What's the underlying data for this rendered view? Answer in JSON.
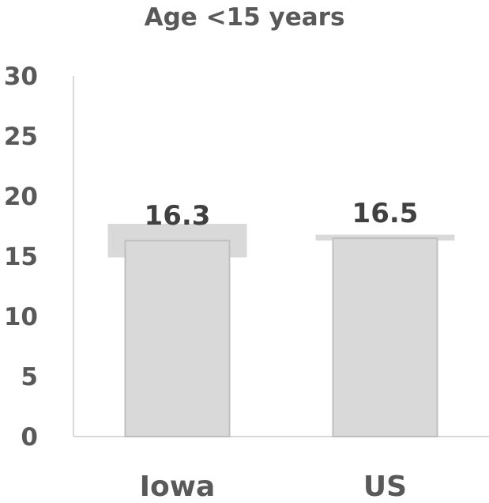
{
  "chart_data": {
    "type": "bar",
    "title": "Age <15 years",
    "categories": [
      "Iowa",
      "US"
    ],
    "values": [
      16.3,
      16.5
    ],
    "error_range": [
      [
        14.9,
        17.7
      ],
      [
        16.3,
        16.8
      ]
    ],
    "data_labels": [
      "16.3",
      "16.5"
    ],
    "ylim": [
      0,
      30
    ],
    "yticks": [
      0,
      5,
      10,
      15,
      20,
      25,
      30
    ],
    "xlabel": "",
    "ylabel": "",
    "grid": false,
    "colors": {
      "bar": "#d9d9d9",
      "bar_outline": "#bfbfbf",
      "range_band": "#d9d9d9",
      "axis": "#d9d9d9",
      "text": "#595959",
      "label": "#404040"
    }
  }
}
